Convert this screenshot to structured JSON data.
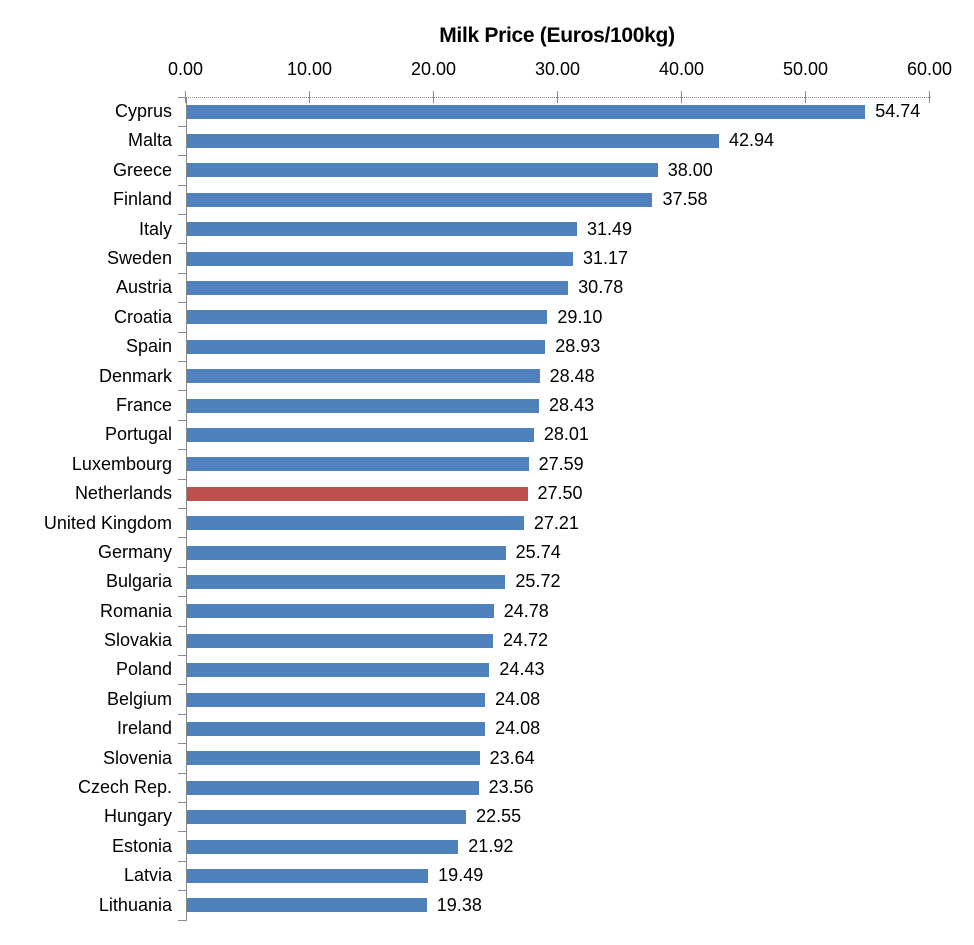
{
  "chart_data": {
    "type": "bar",
    "orientation": "horizontal",
    "title": "Milk Price (Euros/100kg)",
    "categories": [
      "Cyprus",
      "Malta",
      "Greece",
      "Finland",
      "Italy",
      "Sweden",
      "Austria",
      "Croatia",
      "Spain",
      "Denmark",
      "France",
      "Portugal",
      "Luxembourg",
      "Netherlands",
      "United Kingdom",
      "Germany",
      "Bulgaria",
      "Romania",
      "Slovakia",
      "Poland",
      "Belgium",
      "Ireland",
      "Slovenia",
      "Czech Rep.",
      "Hungary",
      "Estonia",
      "Latvia",
      "Lithuania"
    ],
    "values": [
      54.74,
      42.94,
      38.0,
      37.58,
      31.49,
      31.17,
      30.78,
      29.1,
      28.93,
      28.48,
      28.43,
      28.01,
      27.59,
      27.5,
      27.21,
      25.74,
      25.72,
      24.78,
      24.72,
      24.43,
      24.08,
      24.08,
      23.64,
      23.56,
      22.55,
      21.92,
      19.49,
      19.38
    ],
    "value_labels": [
      "54.74",
      "42.94",
      "38.00",
      "37.58",
      "31.49",
      "31.17",
      "30.78",
      "29.10",
      "28.93",
      "28.48",
      "28.43",
      "28.01",
      "27.59",
      "27.50",
      "27.21",
      "25.74",
      "25.72",
      "24.78",
      "24.72",
      "24.43",
      "24.08",
      "24.08",
      "23.64",
      "23.56",
      "22.55",
      "21.92",
      "19.49",
      "19.38"
    ],
    "highlighted_category": "Netherlands",
    "highlight_index": 13,
    "xlim": [
      0,
      60
    ],
    "x_ticks": [
      "0.00",
      "10.00",
      "20.00",
      "30.00",
      "40.00",
      "50.00",
      "60.00"
    ],
    "xlabel": "",
    "ylabel": "",
    "legend_position": "none",
    "grid": false,
    "data_labels": true,
    "colors": {
      "bar": "#4F81BD",
      "highlight": "#C0504D",
      "axis": "#8A8A8A",
      "text": "#000000",
      "background": "#FFFFFF"
    }
  }
}
